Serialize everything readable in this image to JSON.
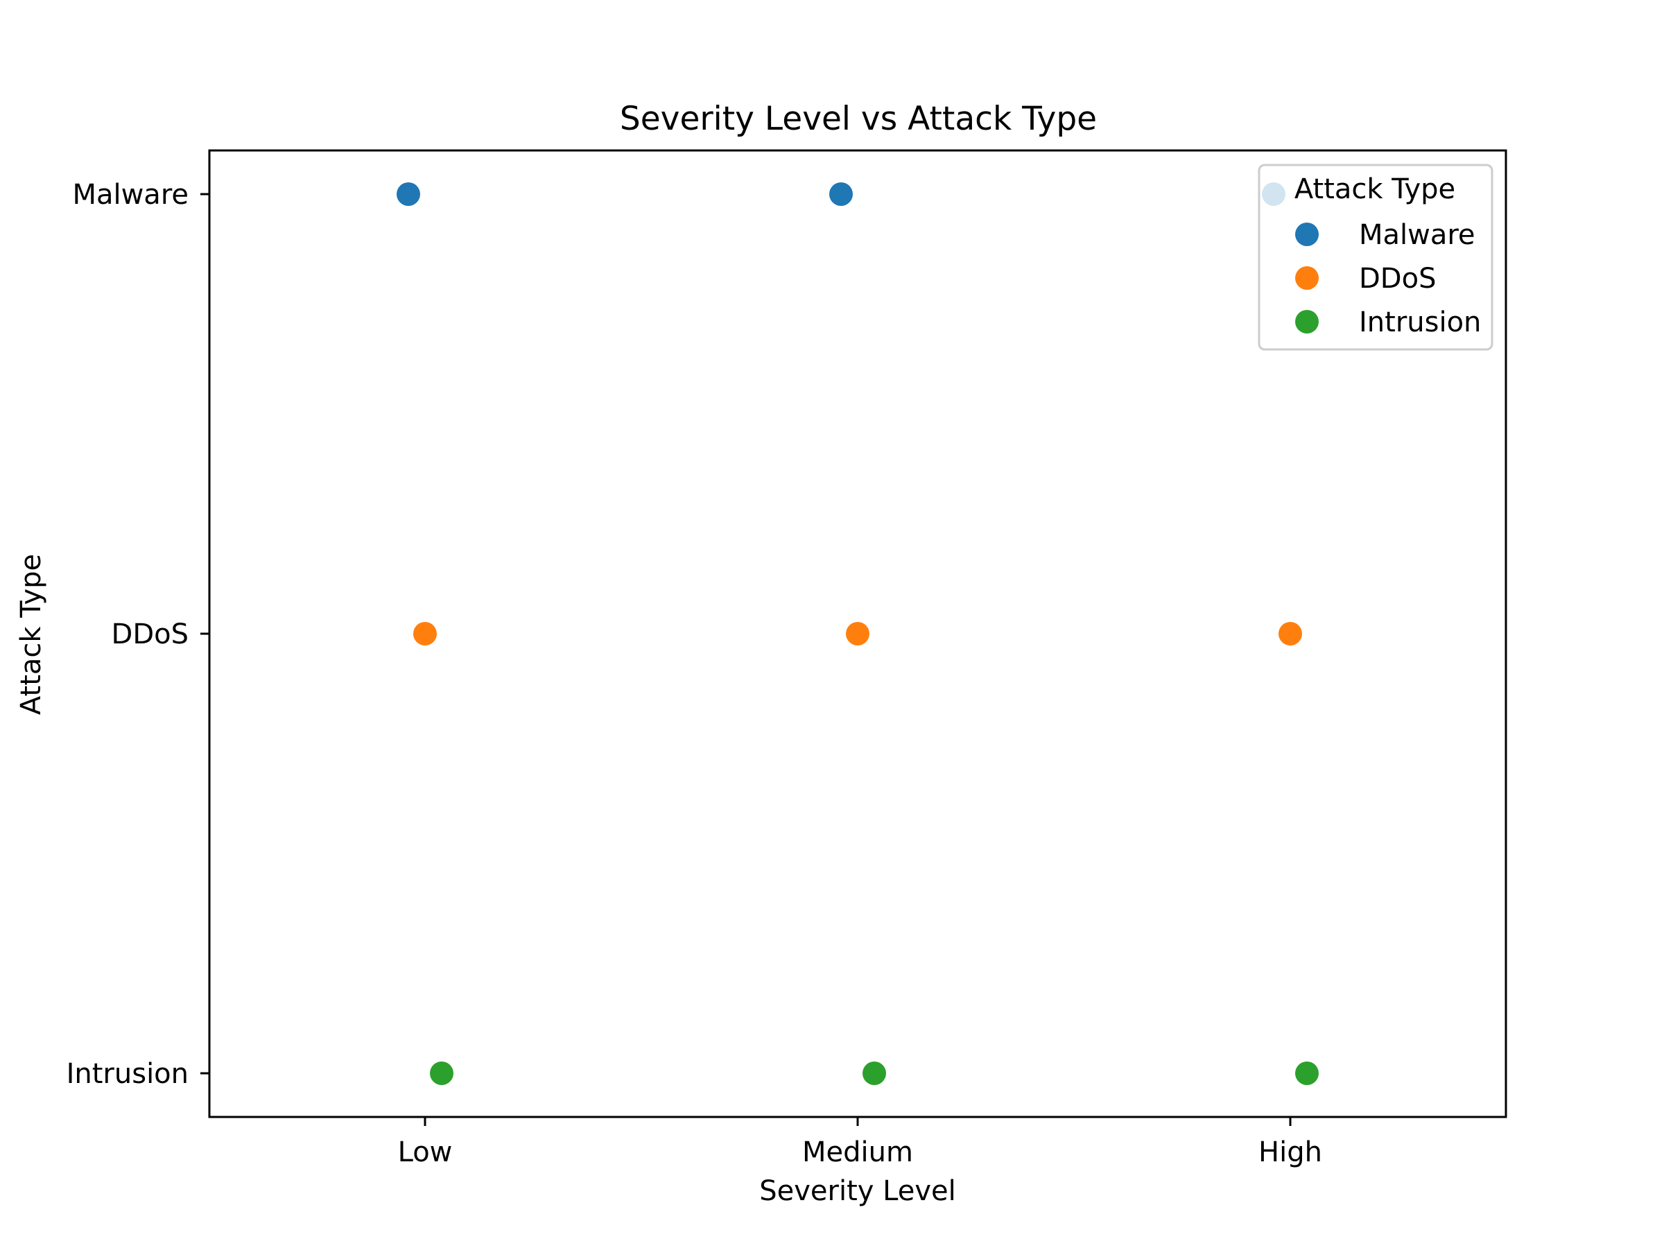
{
  "chart_data": {
    "type": "scatter",
    "title": "Severity Level vs Attack Type",
    "xlabel": "Severity Level",
    "ylabel": "Attack Type",
    "x_categories": [
      "Low",
      "Medium",
      "High"
    ],
    "y_categories": [
      "Intrusion",
      "DDoS",
      "Malware"
    ],
    "grid": false,
    "legend": {
      "title": "Attack Type",
      "placement": "top-right"
    },
    "series": [
      {
        "name": "Malware",
        "color": "#1f77b4",
        "points": [
          {
            "x": "Low",
            "y": "Malware"
          },
          {
            "x": "Medium",
            "y": "Malware"
          },
          {
            "x": "High",
            "y": "Malware"
          }
        ]
      },
      {
        "name": "DDoS",
        "color": "#ff7f0e",
        "points": [
          {
            "x": "Low",
            "y": "DDoS"
          },
          {
            "x": "Medium",
            "y": "DDoS"
          },
          {
            "x": "High",
            "y": "DDoS"
          }
        ]
      },
      {
        "name": "Intrusion",
        "color": "#2ca02c",
        "points": [
          {
            "x": "Low",
            "y": "Intrusion"
          },
          {
            "x": "Medium",
            "y": "Intrusion"
          },
          {
            "x": "High",
            "y": "Intrusion"
          }
        ]
      }
    ]
  }
}
